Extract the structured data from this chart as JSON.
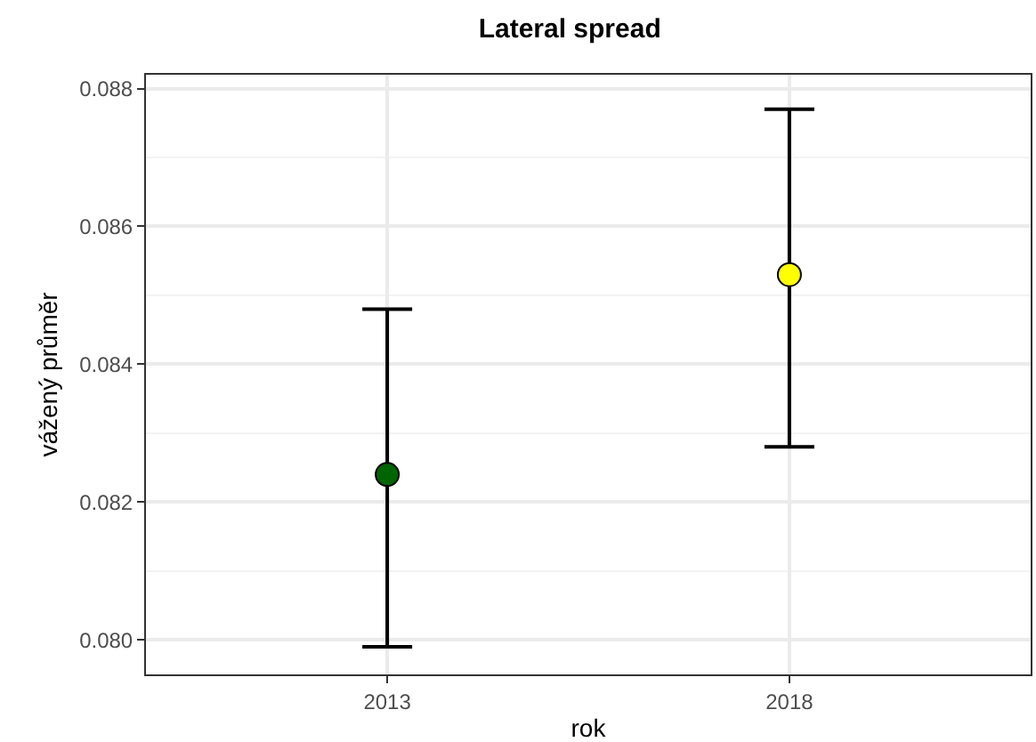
{
  "chart_data": {
    "type": "scatter",
    "title": "Lateral spread",
    "xlabel": "rok",
    "ylabel": "vážený průměr",
    "categories": [
      "2013",
      "2018"
    ],
    "values": [
      0.0824,
      0.0853
    ],
    "colors": [
      "#006400",
      "#ffff00"
    ],
    "errors": [
      [
        0.0799,
        0.0848
      ],
      [
        0.0828,
        0.0877
      ]
    ],
    "ylim": [
      0.0795,
      0.0882
    ],
    "yticks": [
      {
        "value": 0.08,
        "label": "0.080"
      },
      0.082,
      0.084,
      0.086,
      0.088
    ],
    "grid": true
  }
}
